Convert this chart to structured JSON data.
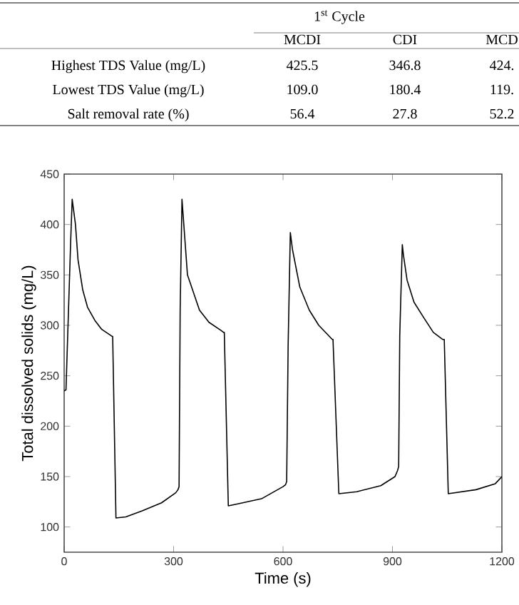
{
  "chart_data": {
    "type": "line",
    "xlabel": "Time (s)",
    "ylabel": "Total dissolved solids (mg/L)",
    "xlim": [
      0,
      1200
    ],
    "ylim": [
      75,
      450
    ],
    "xticks": [
      0,
      300,
      600,
      900,
      1200
    ],
    "yticks": [
      100,
      150,
      200,
      250,
      300,
      350,
      400,
      450
    ],
    "series": [
      {
        "color": "#000000",
        "x": [
          0,
          5,
          18,
          22,
          31,
          38,
          51,
          64,
          84,
          103,
          132,
          133,
          142,
          169,
          214,
          267,
          306,
          312,
          315,
          318,
          323,
          338,
          371,
          397,
          430,
          437,
          439,
          450,
          476,
          541,
          600,
          607,
          610,
          614,
          620,
          626,
          646,
          672,
          698,
          735,
          737,
          753,
          802,
          868,
          907,
          914,
          917,
          920,
          927,
          930,
          940,
          959,
          985,
          1012,
          1038,
          1042,
          1053,
          1129,
          1182,
          1200
        ],
        "values": [
          235,
          236,
          385,
          425,
          400,
          365,
          335,
          318,
          305,
          296,
          289,
          289,
          109,
          110,
          116,
          124,
          134,
          137,
          140,
          315,
          425,
          350,
          315,
          303,
          295,
          293,
          293,
          121,
          123,
          128,
          140,
          142,
          145,
          280,
          392,
          375,
          338,
          315,
          300,
          286,
          286,
          133,
          135,
          141,
          150,
          156,
          160,
          290,
          380,
          370,
          345,
          323,
          308,
          293,
          286,
          286,
          133,
          137,
          143,
          150
        ]
      }
    ],
    "annotations": [
      "1$^{st}$ Cycle",
      "MCDI",
      "CDI",
      "MCD",
      "Highest TDS Value (mg/L)",
      "425.5",
      "346.8",
      "424.",
      "Lowest TDS Value (mg/L)",
      "109.0",
      "180.4",
      "119.",
      "Salt removal rate (%)",
      "56.4",
      "27.8",
      "52.2"
    ]
  }
}
